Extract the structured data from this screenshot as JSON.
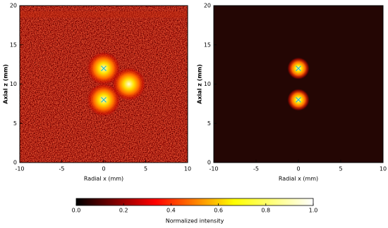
{
  "chart_data": [
    {
      "type": "heatmap",
      "xlabel": "Radial x (mm)",
      "ylabel": "Axial z (mm)",
      "xlim": [
        -10,
        10
      ],
      "ylim": [
        0,
        20
      ],
      "xticks": [
        -10,
        -5,
        0,
        5,
        10
      ],
      "yticks": [
        0,
        5,
        10,
        15,
        20
      ],
      "background_noise": true,
      "spots": {
        "x": [
          0,
          0,
          3
        ],
        "y": [
          12,
          8,
          10
        ],
        "size": [
          2,
          2,
          2
        ]
      },
      "markers": {
        "x": [
          0,
          0
        ],
        "y": [
          12,
          8
        ],
        "color": "#33c0c0"
      }
    },
    {
      "type": "heatmap",
      "xlabel": "Radial x (mm)",
      "ylabel": "Axial z (mm)",
      "xlim": [
        -10,
        10
      ],
      "ylim": [
        0,
        20
      ],
      "xticks": [
        -10,
        -5,
        0,
        5,
        10
      ],
      "yticks": [
        0,
        5,
        10,
        15,
        20
      ],
      "background_noise": false,
      "spots": {
        "x": [
          0,
          0
        ],
        "y": [
          12,
          8
        ],
        "size": [
          1.3,
          1.3
        ]
      },
      "markers": {
        "x": [
          0,
          0
        ],
        "y": [
          12,
          8
        ],
        "color": "#33c0c0"
      }
    },
    {
      "type": "colorbar",
      "label": "Normalized intensity",
      "lim": [
        0,
        1
      ],
      "ticks": [
        {
          "value": 0,
          "label": "0.0"
        },
        {
          "value": 0.2,
          "label": "0.2"
        },
        {
          "value": 0.4,
          "label": "0.4"
        },
        {
          "value": 0.6,
          "label": "0.6"
        },
        {
          "value": 0.8,
          "label": "0.8"
        },
        {
          "value": 1,
          "label": "1.0"
        }
      ],
      "colors": [
        "#000000",
        "#ff0000",
        "#ffff00",
        "#ffffff"
      ]
    }
  ]
}
